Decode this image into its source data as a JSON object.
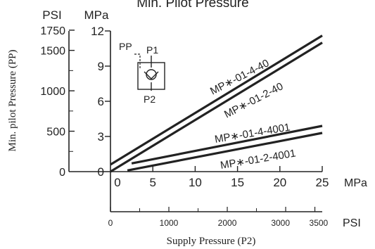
{
  "chart_data": {
    "type": "line",
    "title": "Min. Pilot Pressure",
    "xlabel": "Supply Pressure (P2)",
    "ylabel": "Min. pilot Pressure (PP)",
    "x_unit_primary": "MPa",
    "x_unit_secondary": "PSI",
    "y_unit_primary": "MPa",
    "y_unit_secondary": "PSI",
    "xlim": [
      0,
      25
    ],
    "ylim": [
      0,
      12
    ],
    "x_ticks_mpa": [
      "0",
      "5",
      "10",
      "15",
      "20",
      "25"
    ],
    "x_ticks_psi": [
      "0",
      "1000",
      "2000",
      "3000",
      "3500"
    ],
    "y_ticks_mpa": [
      "0",
      "3",
      "6",
      "9",
      "12"
    ],
    "y_ticks_psi": [
      "0",
      "500",
      "1000",
      "1500",
      "1750"
    ],
    "grid": false,
    "series": [
      {
        "name": "MP∗-01-4-40",
        "x": [
          0,
          25
        ],
        "y": [
          0.6,
          11.6
        ]
      },
      {
        "name": "MP∗-01-2-40",
        "x": [
          0,
          25
        ],
        "y": [
          0.0,
          11.0
        ]
      },
      {
        "name": "MP∗-01-4-4001",
        "x": [
          2.5,
          25
        ],
        "y": [
          0.7,
          3.9
        ]
      },
      {
        "name": "MP∗-01-2-4001",
        "x": [
          2,
          25
        ],
        "y": [
          0.1,
          3.3
        ]
      }
    ],
    "inset_symbol": {
      "labels": [
        "PP",
        "P1",
        "P2"
      ]
    }
  }
}
